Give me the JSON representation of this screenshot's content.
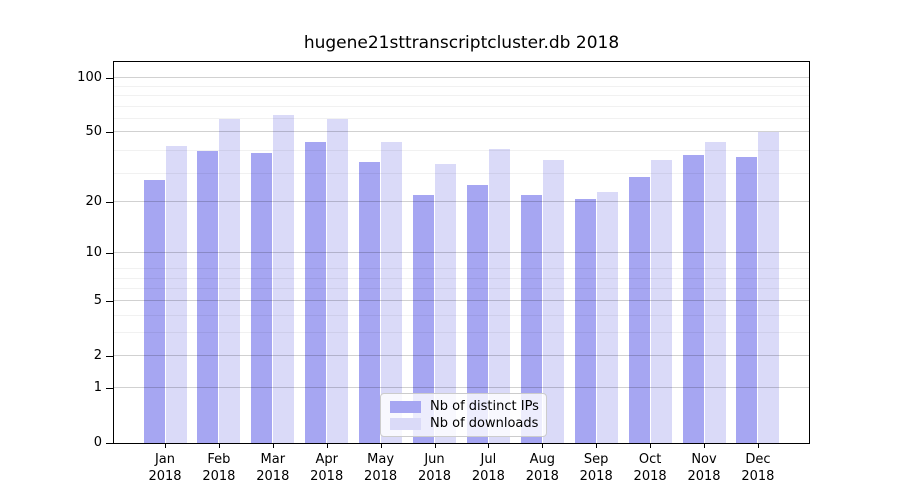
{
  "chart_data": {
    "type": "bar",
    "title": "hugene21sttranscriptcluster.db 2018",
    "categories": [
      "Jan",
      "Feb",
      "Mar",
      "Apr",
      "May",
      "Jun",
      "Jul",
      "Aug",
      "Sep",
      "Oct",
      "Nov",
      "Dec"
    ],
    "year_label": "2018",
    "series": [
      {
        "name": "Nb of distinct IPs",
        "color": "#a6a6f2",
        "values": [
          27,
          39,
          38,
          44,
          34,
          22,
          25,
          22,
          21,
          28,
          37,
          36
        ]
      },
      {
        "name": "Nb of downloads",
        "color": "#dadaf8",
        "values": [
          42,
          59,
          62,
          59,
          44,
          33,
          40,
          35,
          23,
          35,
          44,
          50
        ]
      }
    ],
    "xlabel": "",
    "ylabel": "",
    "yscale": "log1p",
    "yticks": [
      0,
      1,
      2,
      5,
      10,
      20,
      50,
      100
    ],
    "ylim": [
      0,
      126
    ],
    "grid": "both",
    "legend_position": "lower center"
  }
}
